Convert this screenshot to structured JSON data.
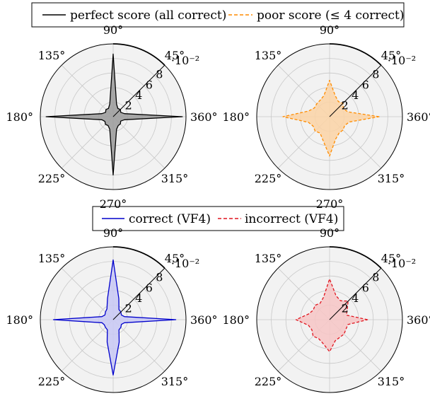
{
  "legends": [
    {
      "items": [
        {
          "label": "perfect score (all correct)",
          "color": "#000000",
          "dash": "solid"
        },
        {
          "label": "poor score (≤ 4 correct)",
          "color": "#ff8c00",
          "dash": "dashed"
        }
      ]
    },
    {
      "items": [
        {
          "label": "correct (VF4)",
          "color": "#0000cc",
          "dash": "solid"
        },
        {
          "label": "incorrect (VF4)",
          "color": "#e0141e",
          "dash": "dashed"
        }
      ]
    }
  ],
  "axis_common": {
    "angle_ticks": [
      {
        "angle": 0,
        "label": "360°"
      },
      {
        "angle": 45,
        "label": "45°"
      },
      {
        "angle": 90,
        "label": "90°"
      },
      {
        "angle": 135,
        "label": "135°"
      },
      {
        "angle": 180,
        "label": "180°"
      },
      {
        "angle": 225,
        "label": "225°"
      },
      {
        "angle": 270,
        "label": "270°"
      },
      {
        "angle": 315,
        "label": "315°"
      }
    ],
    "radial_ticks": [
      2,
      4,
      6,
      8
    ],
    "radial_ticks_labeled": [
      "2",
      "4",
      "6",
      "8"
    ],
    "radial_max": 10,
    "radial_scale_label": "·10⁻²"
  },
  "chart_data": [
    {
      "type": "polar-area",
      "series": [
        {
          "name": "perfect score (all correct)",
          "color": "#000000",
          "fill": "#9a9a9a",
          "dash": "solid"
        }
      ],
      "angles": [
        0,
        15,
        30,
        45,
        60,
        75,
        90,
        105,
        120,
        135,
        150,
        165,
        180,
        195,
        210,
        225,
        240,
        255,
        270,
        285,
        300,
        315,
        330,
        345
      ],
      "values": [
        9.5,
        1.6,
        1.2,
        1.4,
        1.3,
        1.8,
        8.6,
        1.8,
        1.3,
        1.4,
        1.2,
        1.6,
        9.2,
        1.6,
        1.3,
        1.5,
        1.4,
        1.8,
        8.0,
        1.8,
        1.4,
        1.4,
        1.2,
        1.6
      ],
      "rmax": 10
    },
    {
      "type": "polar-area",
      "series": [
        {
          "name": "poor score (≤ 4 correct)",
          "color": "#ff8c00",
          "fill": "#fcd3a6",
          "dash": "dashed"
        }
      ],
      "angles": [
        0,
        15,
        30,
        45,
        60,
        75,
        90,
        105,
        120,
        135,
        150,
        165,
        180,
        195,
        210,
        225,
        240,
        255,
        270,
        285,
        300,
        315,
        330,
        345
      ],
      "values": [
        6.8,
        2.6,
        2.2,
        2.6,
        2.4,
        3.0,
        5.0,
        3.0,
        2.6,
        2.5,
        2.4,
        3.0,
        6.4,
        3.0,
        2.6,
        2.8,
        2.6,
        3.4,
        5.4,
        3.2,
        2.6,
        2.6,
        2.4,
        2.8
      ],
      "rmax": 10
    },
    {
      "type": "polar-area",
      "series": [
        {
          "name": "correct (VF4)",
          "color": "#0000cc",
          "fill": "#c8c8f5",
          "dash": "solid"
        }
      ],
      "angles": [
        0,
        15,
        30,
        45,
        60,
        75,
        90,
        105,
        120,
        135,
        150,
        165,
        180,
        195,
        210,
        225,
        240,
        255,
        270,
        285,
        300,
        315,
        330,
        345
      ],
      "values": [
        8.6,
        1.6,
        1.3,
        1.5,
        1.6,
        3.0,
        8.2,
        3.0,
        1.7,
        1.5,
        1.3,
        1.6,
        8.2,
        1.6,
        1.4,
        1.5,
        1.6,
        3.2,
        7.6,
        3.2,
        1.6,
        1.5,
        1.3,
        1.6
      ],
      "rmax": 10
    },
    {
      "type": "polar-area",
      "series": [
        {
          "name": "incorrect (VF4)",
          "color": "#e0141e",
          "fill": "#f7c5c5",
          "dash": "dashed"
        }
      ],
      "angles": [
        0,
        15,
        30,
        45,
        60,
        75,
        90,
        105,
        120,
        135,
        150,
        165,
        180,
        195,
        210,
        225,
        240,
        255,
        270,
        285,
        300,
        315,
        330,
        345
      ],
      "values": [
        5.2,
        2.4,
        2.8,
        3.6,
        3.0,
        3.4,
        5.6,
        3.2,
        2.6,
        2.8,
        2.6,
        3.0,
        4.6,
        3.0,
        2.8,
        3.2,
        3.0,
        3.4,
        4.4,
        3.0,
        2.8,
        2.8,
        2.6,
        2.6
      ],
      "rmax": 10
    }
  ]
}
